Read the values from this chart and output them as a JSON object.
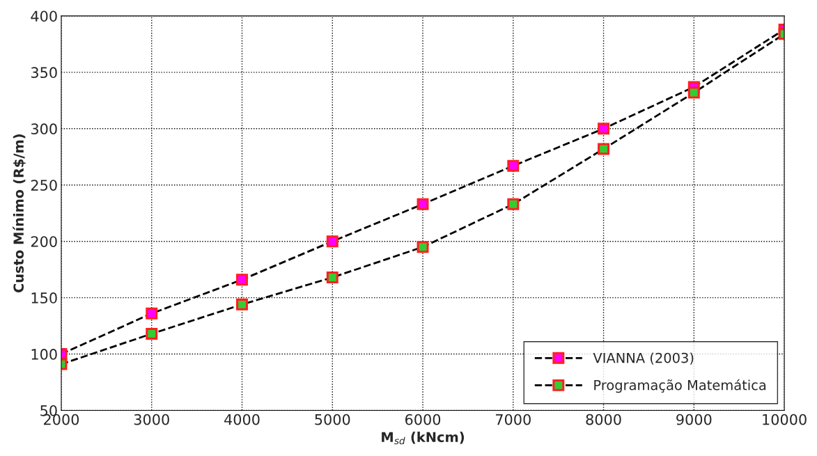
{
  "chart_data": {
    "type": "line",
    "xlabel": "M$_{sd}$ (kNcm)",
    "ylabel": "Custo Mínimo (R$/m)",
    "x": [
      2000,
      3000,
      4000,
      5000,
      6000,
      7000,
      8000,
      9000,
      10000
    ],
    "series": [
      {
        "name": "VIANNA (2003)",
        "color": "#ff00ff",
        "values": [
          100,
          136,
          166,
          200,
          233,
          267,
          300,
          337,
          388
        ]
      },
      {
        "name": "Programação Matemática",
        "color": "#33cc33",
        "values": [
          91,
          118,
          144,
          168,
          195,
          233,
          282,
          332,
          384
        ]
      }
    ],
    "xlim": [
      2000,
      10000
    ],
    "xticks": [
      2000,
      3000,
      4000,
      5000,
      6000,
      7000,
      8000,
      9000,
      10000
    ],
    "ylim": [
      50,
      400
    ],
    "yticks": [
      50,
      100,
      150,
      200,
      250,
      300,
      350,
      400
    ],
    "grid": true,
    "legend": "bottom right",
    "marker": "square",
    "line_style": "dashed"
  }
}
